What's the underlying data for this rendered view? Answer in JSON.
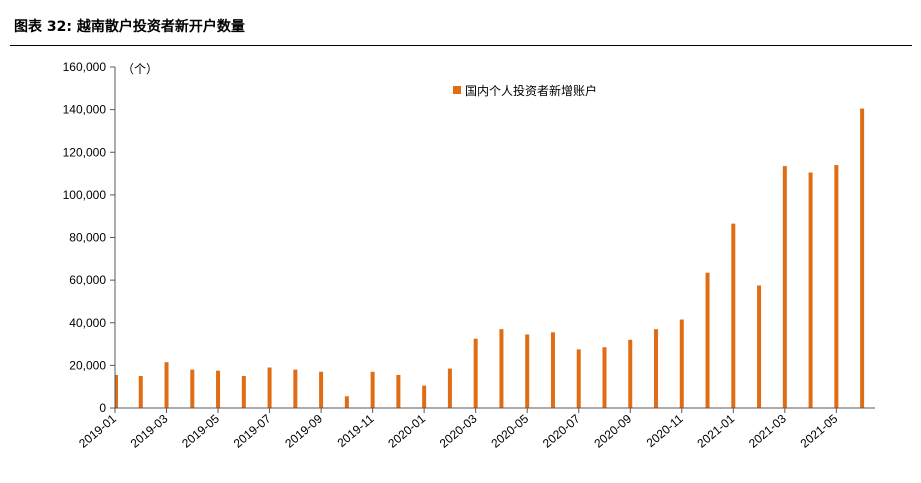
{
  "header": {
    "title": "图表 32: 越南散户投资者新开户数量"
  },
  "chart_data": {
    "type": "bar",
    "unit_label": "（个）",
    "legend": [
      "国内个人投资者新增账户"
    ],
    "colors": {
      "bar": "#E06C14",
      "axis": "#595959"
    },
    "ylim": [
      0,
      160000
    ],
    "yticks": [
      0,
      20000,
      40000,
      60000,
      80000,
      100000,
      120000,
      140000,
      160000
    ],
    "ytick_labels": [
      "0",
      "20,000",
      "40,000",
      "60,000",
      "80,000",
      "100,000",
      "120,000",
      "140,000",
      "160,000"
    ],
    "categories": [
      "2019-01",
      "2019-02",
      "2019-03",
      "2019-04",
      "2019-05",
      "2019-06",
      "2019-07",
      "2019-08",
      "2019-09",
      "2019-10",
      "2019-11",
      "2019-12",
      "2020-01",
      "2020-02",
      "2020-03",
      "2020-04",
      "2020-05",
      "2020-06",
      "2020-07",
      "2020-08",
      "2020-09",
      "2020-10",
      "2020-11",
      "2020-12",
      "2021-01",
      "2021-02",
      "2021-03",
      "2021-04",
      "2021-05",
      "2021-06"
    ],
    "x_tick_labels": [
      "2019-01",
      "2019-03",
      "2019-05",
      "2019-07",
      "2019-09",
      "2019-11",
      "2020-01",
      "2020-03",
      "2020-05",
      "2020-07",
      "2020-09",
      "2020-11",
      "2021-01",
      "2021-03",
      "2021-05"
    ],
    "series": [
      {
        "name": "国内个人投资者新增账户",
        "values": [
          15500,
          15000,
          21500,
          18000,
          17500,
          15000,
          19000,
          18000,
          17000,
          5500,
          17000,
          15500,
          10500,
          18500,
          32500,
          37000,
          34500,
          35500,
          27500,
          28500,
          32000,
          37000,
          41500,
          63500,
          86500,
          57500,
          113500,
          110500,
          114000,
          140500
        ]
      }
    ]
  }
}
